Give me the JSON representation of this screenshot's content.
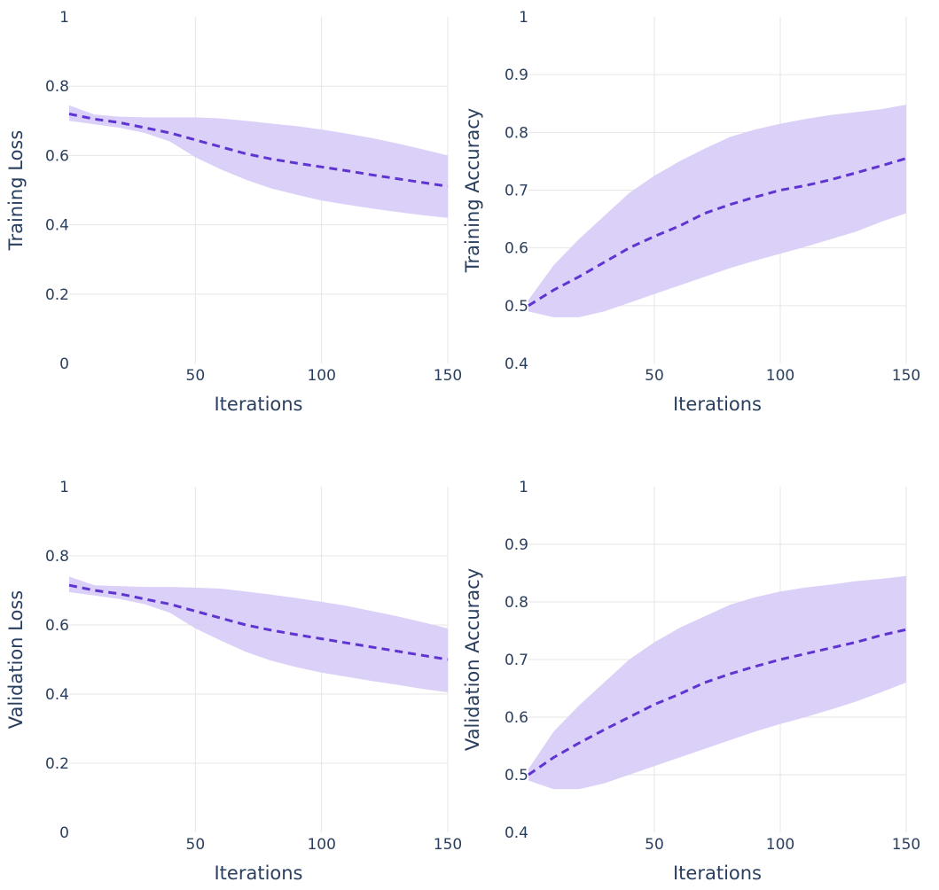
{
  "chart_data": [
    {
      "type": "line",
      "xlabel": "Iterations",
      "ylabel": "Training Loss",
      "xlim": [
        0,
        150
      ],
      "ylim": [
        0,
        1
      ],
      "x_ticks": [
        50,
        100,
        150
      ],
      "y_ticks": [
        0,
        0.2,
        0.4,
        0.6,
        0.8,
        1
      ],
      "grid": true,
      "colors": {
        "line": "#5e35d1",
        "band": "#d9cdf7"
      },
      "x": [
        0,
        10,
        20,
        30,
        40,
        50,
        60,
        70,
        80,
        90,
        100,
        110,
        120,
        130,
        140,
        150
      ],
      "mean": [
        0.72,
        0.705,
        0.695,
        0.68,
        0.665,
        0.645,
        0.625,
        0.605,
        0.59,
        0.578,
        0.567,
        0.556,
        0.544,
        0.533,
        0.522,
        0.511
      ],
      "upper": [
        0.745,
        0.718,
        0.712,
        0.71,
        0.71,
        0.71,
        0.707,
        0.7,
        0.692,
        0.685,
        0.675,
        0.663,
        0.65,
        0.635,
        0.618,
        0.6
      ],
      "lower": [
        0.7,
        0.69,
        0.68,
        0.665,
        0.64,
        0.595,
        0.56,
        0.53,
        0.505,
        0.487,
        0.47,
        0.458,
        0.447,
        0.437,
        0.428,
        0.42
      ]
    },
    {
      "type": "line",
      "xlabel": "Iterations",
      "ylabel": "Training Accuracy",
      "xlim": [
        0,
        150
      ],
      "ylim": [
        0.4,
        1
      ],
      "x_ticks": [
        50,
        100,
        150
      ],
      "y_ticks": [
        0.4,
        0.5,
        0.6,
        0.7,
        0.8,
        0.9,
        1
      ],
      "grid": true,
      "colors": {
        "line": "#5e35d1",
        "band": "#d9cdf7"
      },
      "x": [
        0,
        10,
        20,
        30,
        40,
        50,
        60,
        70,
        80,
        90,
        100,
        110,
        120,
        130,
        140,
        150
      ],
      "mean": [
        0.5,
        0.527,
        0.55,
        0.575,
        0.6,
        0.62,
        0.638,
        0.66,
        0.675,
        0.688,
        0.7,
        0.708,
        0.718,
        0.73,
        0.742,
        0.755
      ],
      "upper": [
        0.51,
        0.57,
        0.615,
        0.655,
        0.695,
        0.725,
        0.75,
        0.772,
        0.792,
        0.805,
        0.815,
        0.823,
        0.83,
        0.835,
        0.84,
        0.848
      ],
      "lower": [
        0.49,
        0.48,
        0.48,
        0.49,
        0.505,
        0.52,
        0.535,
        0.55,
        0.565,
        0.578,
        0.59,
        0.602,
        0.615,
        0.628,
        0.645,
        0.66
      ]
    },
    {
      "type": "line",
      "xlabel": "Iterations",
      "ylabel": "Validation Loss",
      "xlim": [
        0,
        150
      ],
      "ylim": [
        0,
        1
      ],
      "x_ticks": [
        50,
        100,
        150
      ],
      "y_ticks": [
        0,
        0.2,
        0.4,
        0.6,
        0.8,
        1
      ],
      "grid": true,
      "colors": {
        "line": "#5e35d1",
        "band": "#d9cdf7"
      },
      "x": [
        0,
        10,
        20,
        30,
        40,
        50,
        60,
        70,
        80,
        90,
        100,
        110,
        120,
        130,
        140,
        150
      ],
      "mean": [
        0.715,
        0.7,
        0.69,
        0.675,
        0.66,
        0.64,
        0.62,
        0.6,
        0.585,
        0.572,
        0.56,
        0.548,
        0.536,
        0.524,
        0.512,
        0.5
      ],
      "upper": [
        0.74,
        0.715,
        0.712,
        0.71,
        0.71,
        0.708,
        0.705,
        0.697,
        0.688,
        0.678,
        0.667,
        0.655,
        0.64,
        0.625,
        0.608,
        0.59
      ],
      "lower": [
        0.695,
        0.685,
        0.675,
        0.66,
        0.635,
        0.59,
        0.555,
        0.522,
        0.497,
        0.478,
        0.462,
        0.45,
        0.438,
        0.427,
        0.415,
        0.405
      ]
    },
    {
      "type": "line",
      "xlabel": "Iterations",
      "ylabel": "Validation Accuracy",
      "xlim": [
        0,
        150
      ],
      "ylim": [
        0.4,
        1
      ],
      "x_ticks": [
        50,
        100,
        150
      ],
      "y_ticks": [
        0.4,
        0.5,
        0.6,
        0.7,
        0.8,
        0.9,
        1
      ],
      "grid": true,
      "colors": {
        "line": "#5e35d1",
        "band": "#d9cdf7"
      },
      "x": [
        0,
        10,
        20,
        30,
        40,
        50,
        60,
        70,
        80,
        90,
        100,
        110,
        120,
        130,
        140,
        150
      ],
      "mean": [
        0.5,
        0.53,
        0.555,
        0.578,
        0.6,
        0.622,
        0.64,
        0.66,
        0.675,
        0.688,
        0.7,
        0.71,
        0.72,
        0.73,
        0.742,
        0.752
      ],
      "upper": [
        0.51,
        0.575,
        0.62,
        0.66,
        0.7,
        0.73,
        0.755,
        0.775,
        0.795,
        0.808,
        0.818,
        0.825,
        0.83,
        0.836,
        0.84,
        0.845
      ],
      "lower": [
        0.49,
        0.475,
        0.475,
        0.485,
        0.5,
        0.515,
        0.53,
        0.545,
        0.56,
        0.575,
        0.588,
        0.6,
        0.613,
        0.627,
        0.643,
        0.66
      ]
    }
  ]
}
